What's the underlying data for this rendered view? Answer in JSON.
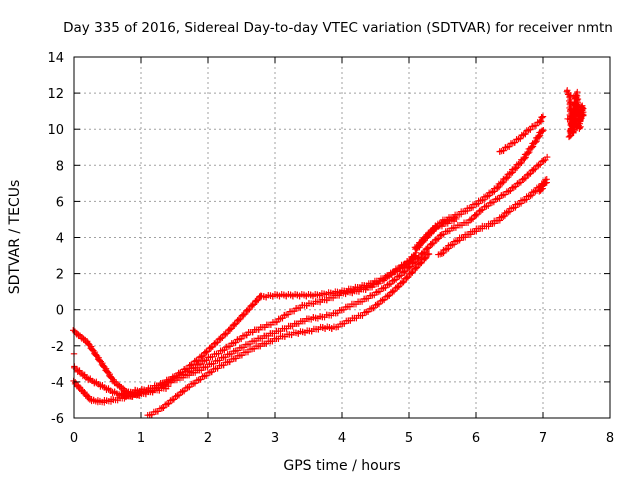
{
  "chart_data": {
    "type": "scatter",
    "title": "Day 335 of 2016, Sidereal Day-to-day VTEC variation (SDTVAR) for receiver nmtn",
    "xlabel": "GPS time / hours",
    "ylabel": "SDTVAR / TECUs",
    "xlim": [
      0,
      8
    ],
    "ylim": [
      -6,
      14
    ],
    "xticks": [
      0,
      1,
      2,
      3,
      4,
      5,
      6,
      7,
      8
    ],
    "yticks": [
      -6,
      -4,
      -2,
      0,
      2,
      4,
      6,
      8,
      10,
      12,
      14
    ],
    "grid": true,
    "marker": "+",
    "color": "#ff0000",
    "series": [
      {
        "x": [
          0.0,
          0.2,
          0.4,
          0.6,
          0.8,
          0.95
        ],
        "y": [
          -1.2,
          -1.8,
          -2.9,
          -4.0,
          -4.6,
          -4.7
        ]
      },
      {
        "x": [
          0.0,
          0.2,
          0.4,
          0.6,
          0.8,
          1.0,
          1.2,
          1.4
        ],
        "y": [
          -3.2,
          -3.8,
          -4.2,
          -4.6,
          -4.8,
          -4.7,
          -4.5,
          -4.3
        ]
      },
      {
        "x": [
          0.0,
          0.15,
          0.25,
          0.4,
          0.6,
          0.8,
          1.0
        ],
        "y": [
          -4.0,
          -4.6,
          -5.0,
          -5.1,
          -5.0,
          -4.8,
          -4.6
        ]
      },
      {
        "x": [
          0.7,
          0.9,
          1.1,
          1.3,
          1.5,
          1.7,
          1.9,
          2.1,
          2.3,
          2.5,
          2.7,
          2.8
        ],
        "y": [
          -4.7,
          -4.5,
          -4.4,
          -4.1,
          -3.7,
          -3.2,
          -2.6,
          -1.9,
          -1.2,
          -0.4,
          0.4,
          0.8
        ]
      },
      {
        "x": [
          2.8,
          3.0,
          3.2,
          3.4,
          3.6,
          3.8,
          4.0,
          4.2,
          4.4,
          4.6,
          4.8,
          5.0,
          5.1
        ],
        "y": [
          0.7,
          0.8,
          0.8,
          0.8,
          0.8,
          0.9,
          1.0,
          1.2,
          1.4,
          1.7,
          2.1,
          2.6,
          3.0
        ]
      },
      {
        "x": [
          5.1,
          5.3,
          5.5,
          5.7,
          5.9,
          6.1,
          6.3,
          6.5,
          6.7,
          6.9,
          7.0
        ],
        "y": [
          3.4,
          4.2,
          4.9,
          5.2,
          5.6,
          6.1,
          6.7,
          7.5,
          8.3,
          9.4,
          10.0
        ]
      },
      {
        "x": [
          1.0,
          1.2,
          1.4,
          1.6,
          1.8,
          2.0,
          2.2,
          2.4,
          2.6,
          2.8,
          3.0,
          3.2,
          3.4,
          3.6,
          3.8,
          4.0,
          4.2,
          4.4,
          4.6,
          4.8,
          5.0,
          5.1
        ],
        "y": [
          -4.6,
          -4.4,
          -4.0,
          -3.6,
          -3.2,
          -2.7,
          -2.3,
          -1.8,
          -1.3,
          -1.0,
          -0.7,
          -0.2,
          0.2,
          0.4,
          0.6,
          0.9,
          1.0,
          1.2,
          1.6,
          2.2,
          2.7,
          3.1
        ]
      },
      {
        "x": [
          5.1,
          5.2,
          5.3,
          5.4,
          5.5,
          5.6,
          5.7
        ],
        "y": [
          3.3,
          3.8,
          4.2,
          4.6,
          4.7,
          4.9,
          5.0
        ]
      },
      {
        "x": [
          1.1,
          1.3,
          1.5,
          1.7,
          1.9,
          2.1,
          2.3,
          2.5,
          2.7,
          2.9,
          3.1,
          3.3,
          3.5,
          3.7,
          3.9,
          4.1,
          4.3,
          4.5,
          4.7,
          4.9,
          5.1,
          5.3,
          5.5,
          5.7,
          5.9,
          6.1,
          6.3,
          6.5,
          6.7,
          6.9,
          7.05
        ],
        "y": [
          -4.6,
          -4.2,
          -3.9,
          -3.6,
          -3.3,
          -2.9,
          -2.5,
          -2.1,
          -1.7,
          -1.4,
          -1.1,
          -0.8,
          -0.5,
          -0.4,
          -0.2,
          0.2,
          0.5,
          0.9,
          1.4,
          2.0,
          2.7,
          3.5,
          4.2,
          4.6,
          4.9,
          5.6,
          6.1,
          6.6,
          7.2,
          7.9,
          8.4
        ]
      },
      {
        "x": [
          1.1,
          1.3,
          1.5,
          1.7,
          1.9,
          2.1,
          2.3,
          2.5,
          2.7,
          2.9,
          3.1,
          3.3,
          3.5,
          3.7,
          3.9,
          4.1,
          4.3,
          4.5,
          4.7,
          4.9,
          5.1,
          5.3
        ],
        "y": [
          -5.9,
          -5.5,
          -4.9,
          -4.3,
          -3.8,
          -3.3,
          -2.9,
          -2.5,
          -2.1,
          -1.8,
          -1.5,
          -1.3,
          -1.2,
          -1.0,
          -1.0,
          -0.6,
          -0.3,
          0.2,
          0.8,
          1.5,
          2.3,
          3.1
        ]
      },
      {
        "x": [
          5.45,
          5.6,
          5.75,
          5.9,
          6.05,
          6.2,
          6.35,
          6.5,
          6.65,
          6.8,
          6.95,
          7.05
        ],
        "y": [
          3.0,
          3.5,
          3.9,
          4.2,
          4.5,
          4.7,
          5.0,
          5.5,
          5.9,
          6.3,
          6.8,
          7.1
        ]
      },
      {
        "x": [
          6.35,
          6.5,
          6.65,
          6.8,
          6.95,
          7.0
        ],
        "y": [
          8.7,
          9.1,
          9.5,
          10.0,
          10.4,
          10.7
        ]
      },
      {
        "x": [
          6.95,
          7.0,
          7.05
        ],
        "y": [
          6.5,
          6.9,
          7.2
        ]
      },
      {
        "x": [
          7.35,
          7.4,
          7.42,
          7.45,
          7.48,
          7.5,
          7.52,
          7.55,
          7.58,
          7.6,
          7.4,
          7.45,
          7.5,
          7.55,
          7.38
        ],
        "y": [
          12.1,
          11.9,
          10.2,
          9.8,
          10.5,
          11.5,
          11.0,
          10.4,
          11.3,
          10.8,
          9.6,
          10.8,
          12.0,
          10.0,
          10.6
        ]
      },
      {
        "x": [
          0.0
        ],
        "y": [
          -2.5
        ]
      }
    ]
  }
}
